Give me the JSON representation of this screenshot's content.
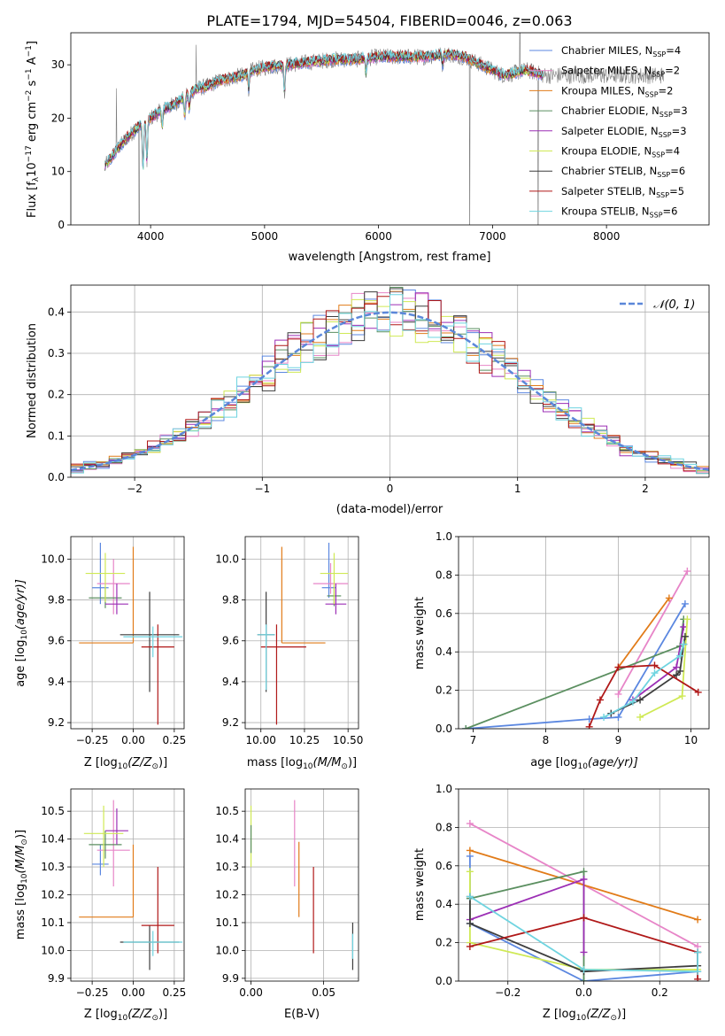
{
  "figure": {
    "title": "PLATE=1794, MJD=54504, FIBERID=0046, z=0.063"
  },
  "colors": {
    "chabrier_miles": "#5b87e0",
    "salpeter_miles": "#e785c8",
    "kroupa_miles": "#e17b18",
    "chabrier_elodie": "#5b8f60",
    "salpeter_elodie": "#9c2fb5",
    "kroupa_elodie": "#cfe955",
    "chabrier_stelib": "#3d3d3d",
    "salpeter_stelib": "#b01818",
    "kroupa_stelib": "#6fd4e0",
    "normal_curve": "#5b87d9",
    "observed_spectrum": "#7d7d7d"
  },
  "legend_spectrum": [
    {
      "label": "Chabrier MILES, N",
      "sub": "SSP",
      "tail": "=4",
      "color": "#5b87e0"
    },
    {
      "label": "Salpeter MILES, N",
      "sub": "SSP",
      "tail": "=2",
      "color": "#e785c8"
    },
    {
      "label": "Kroupa MILES, N",
      "sub": "SSP",
      "tail": "=2",
      "color": "#e17b18"
    },
    {
      "label": "Chabrier ELODIE, N",
      "sub": "SSP",
      "tail": "=3",
      "color": "#5b8f60"
    },
    {
      "label": "Salpeter ELODIE, N",
      "sub": "SSP",
      "tail": "=3",
      "color": "#9c2fb5"
    },
    {
      "label": "Kroupa ELODIE, N",
      "sub": "SSP",
      "tail": "=4",
      "color": "#cfe955"
    },
    {
      "label": "Chabrier STELIB, N",
      "sub": "SSP",
      "tail": "=6",
      "color": "#3d3d3d"
    },
    {
      "label": "Salpeter STELIB, N",
      "sub": "SSP",
      "tail": "=5",
      "color": "#b01818"
    },
    {
      "label": "Kroupa STELIB, N",
      "sub": "SSP",
      "tail": "=6",
      "color": "#6fd4e0"
    }
  ],
  "legend_hist": {
    "label": "𝒩(0, 1)"
  },
  "axes_text": {
    "spectrum_xlabel": "wavelength [Angstrom, rest frame]",
    "spectrum_ylabel": "Flux [f",
    "spectrum_ylabel_sub": "λ",
    "spectrum_ylabel_mid": "10",
    "spectrum_ylabel_sup1": "−17",
    "spectrum_ylabel_rest": " erg cm",
    "spectrum_ylabel_sup2": "−2",
    "spectrum_ylabel_rest2": " s",
    "spectrum_ylabel_sup3": "−1",
    "spectrum_ylabel_rest3": " A",
    "spectrum_ylabel_sup4": "−1",
    "spectrum_ylabel_end": "]",
    "hist_xlabel": "(data-model)/error",
    "hist_ylabel": "Normed distribution",
    "z_label": "Z [log",
    "z_sub": "10",
    "z_label_mid": "(Z/Z",
    "z_sun": "⊙",
    "z_end": ")]",
    "mass_label": "mass [log",
    "mass_mid": "(M/M",
    "age_label": "age  [log",
    "age_mid": "(age/yr)]",
    "massweight_label": "mass weight",
    "ebv_label": "E(B-V)"
  },
  "chart_data": [
    {
      "id": "spectrum",
      "type": "line",
      "title": "PLATE=1794, MJD=54504, FIBERID=0046, z=0.063",
      "xlabel": "wavelength [Angstrom, rest frame]",
      "ylabel": "Flux [fλ 10^-17 erg cm^-2 s^-1 A^-1]",
      "xlim": [
        3300,
        8900
      ],
      "ylim": [
        0,
        36
      ],
      "xticks": [
        4000,
        5000,
        6000,
        7000,
        8000
      ],
      "yticks": [
        0,
        10,
        20,
        30
      ],
      "grid": false,
      "legend_position": "top-right",
      "model_envelope": {
        "x": [
          3600,
          3700,
          3800,
          3900,
          4000,
          4100,
          4200,
          4300,
          4400,
          4500,
          4600,
          4700,
          4800,
          4900,
          5000,
          5200,
          5400,
          5600,
          5800,
          6000,
          6200,
          6400,
          6600,
          6750,
          6900,
          7100,
          7300,
          7450
        ],
        "y": [
          11,
          14,
          16.5,
          18.5,
          20,
          21.5,
          22.5,
          24,
          25.5,
          26,
          27,
          27.5,
          28,
          29,
          29.5,
          30,
          30.5,
          31,
          31,
          31.5,
          31.5,
          31.5,
          32,
          31.5,
          30,
          28,
          29,
          28
        ]
      },
      "series_names": [
        "Chabrier MILES, NSSP=4",
        "Salpeter MILES, NSSP=2",
        "Kroupa MILES, NSSP=2",
        "Chabrier ELODIE, NSSP=3",
        "Salpeter ELODIE, NSSP=3",
        "Kroupa ELODIE, NSSP=4",
        "Chabrier STELIB, NSSP=6",
        "Salpeter STELIB, NSSP=5",
        "Kroupa STELIB, NSSP=6"
      ]
    },
    {
      "id": "residual_hist",
      "type": "histogram",
      "xlabel": "(data-model)/error",
      "ylabel": "Normed distribution",
      "xlim": [
        -2.5,
        2.5
      ],
      "ylim": [
        0,
        0.465
      ],
      "xticks": [
        -2,
        -1,
        0,
        1,
        2
      ],
      "yticks": [
        0.0,
        0.1,
        0.2,
        0.3,
        0.4
      ],
      "grid": true,
      "legend_position": "top-right",
      "bin_width": 0.1,
      "bin_start": -2.5,
      "reference_curve": "normal(0,1) pdf"
    },
    {
      "id": "age_vs_Z",
      "type": "errorbar",
      "xlabel": "Z [log10(Z/Z⊙)]",
      "ylabel": "age [log10(age/yr)]",
      "xlim": [
        -0.38,
        0.31
      ],
      "ylim": [
        9.17,
        10.11
      ],
      "xticks": [
        -0.25,
        0.0,
        0.25
      ],
      "yticks": [
        9.2,
        9.4,
        9.6,
        9.8,
        10.0
      ],
      "grid": true,
      "points": [
        {
          "model": "Chabrier MILES",
          "x": -0.2,
          "y": 9.86,
          "xerr": [
            0.05,
            0.05
          ],
          "yerr": [
            0.08,
            0.22
          ]
        },
        {
          "model": "Salpeter MILES",
          "x": -0.12,
          "y": 9.88,
          "xerr": [
            0.1,
            0.1
          ],
          "yerr": [
            0.15,
            0.12
          ]
        },
        {
          "model": "Kroupa MILES",
          "x": 0.0,
          "y": 9.59,
          "xerr": [
            0.33,
            0.0
          ],
          "yerr": [
            0.0,
            0.47
          ]
        },
        {
          "model": "Chabrier ELODIE",
          "x": -0.17,
          "y": 9.81,
          "xerr": [
            0.1,
            0.1
          ],
          "yerr": [
            0.05,
            0.05
          ]
        },
        {
          "model": "Salpeter ELODIE",
          "x": -0.1,
          "y": 9.78,
          "xerr": [
            0.07,
            0.07
          ],
          "yerr": [
            0.05,
            0.1
          ]
        },
        {
          "model": "Kroupa ELODIE",
          "x": -0.17,
          "y": 9.93,
          "xerr": [
            0.12,
            0.12
          ],
          "yerr": [
            0.14,
            0.1
          ]
        },
        {
          "model": "Chabrier STELIB",
          "x": 0.1,
          "y": 9.63,
          "xerr": [
            0.18,
            0.18
          ],
          "yerr": [
            0.28,
            0.21
          ]
        },
        {
          "model": "Salpeter STELIB",
          "x": 0.15,
          "y": 9.57,
          "xerr": [
            0.1,
            0.1
          ],
          "yerr": [
            0.38,
            0.11
          ]
        },
        {
          "model": "Kroupa STELIB",
          "x": 0.12,
          "y": 9.62,
          "xerr": [
            0.18,
            0.18
          ],
          "yerr": [
            0.1,
            0.05
          ]
        }
      ]
    },
    {
      "id": "age_vs_mass",
      "type": "errorbar",
      "xlabel": "mass [log10(M/M⊙)]",
      "ylabel": "",
      "xlim": [
        9.91,
        10.56
      ],
      "ylim": [
        9.17,
        10.11
      ],
      "xticks": [
        10.0,
        10.25,
        10.5
      ],
      "yticks": [
        9.2,
        9.4,
        9.6,
        9.8,
        10.0
      ],
      "grid": true,
      "points": [
        {
          "model": "Chabrier MILES",
          "x": 10.39,
          "y": 9.86,
          "xerr": [
            0.04,
            0.04
          ],
          "yerr": [
            0.05,
            0.22
          ]
        },
        {
          "model": "Salpeter MILES",
          "x": 10.4,
          "y": 9.88,
          "xerr": [
            0.1,
            0.1
          ],
          "yerr": [
            0.05,
            0.1
          ]
        },
        {
          "model": "Kroupa MILES",
          "x": 10.12,
          "y": 9.59,
          "xerr": [
            0.0,
            0.25
          ],
          "yerr": [
            0.0,
            0.47
          ]
        },
        {
          "model": "Chabrier ELODIE",
          "x": 10.42,
          "y": 9.82,
          "xerr": [
            0.04,
            0.04
          ],
          "yerr": [
            0.05,
            0.05
          ]
        },
        {
          "model": "Salpeter ELODIE",
          "x": 10.43,
          "y": 9.78,
          "xerr": [
            0.06,
            0.06
          ],
          "yerr": [
            0.05,
            0.1
          ]
        },
        {
          "model": "Kroupa ELODIE",
          "x": 10.42,
          "y": 9.93,
          "xerr": [
            0.08,
            0.08
          ],
          "yerr": [
            0.15,
            0.1
          ]
        },
        {
          "model": "Chabrier STELIB",
          "x": 10.03,
          "y": 9.63,
          "xerr": [
            0.05,
            0.05
          ],
          "yerr": [
            0.28,
            0.21
          ]
        },
        {
          "model": "Salpeter STELIB",
          "x": 10.09,
          "y": 9.57,
          "xerr": [
            0.09,
            0.17
          ],
          "yerr": [
            0.38,
            0.11
          ]
        },
        {
          "model": "Kroupa STELIB",
          "x": 10.03,
          "y": 9.63,
          "xerr": [
            0.05,
            0.05
          ],
          "yerr": [
            0.27,
            0.05
          ]
        }
      ]
    },
    {
      "id": "massweight_vs_age",
      "type": "line",
      "xlabel": "age [log10(age/yr)]",
      "ylabel": "mass weight",
      "xlim": [
        6.8,
        10.25
      ],
      "ylim": [
        0,
        1
      ],
      "xticks": [
        7,
        8,
        9,
        10
      ],
      "yticks": [
        0.0,
        0.2,
        0.4,
        0.6,
        0.8,
        1.0
      ],
      "grid": true,
      "series": [
        {
          "model": "Chabrier MILES",
          "x": [
            6.9,
            8.6,
            9.0,
            9.92
          ],
          "y": [
            0.0,
            0.05,
            0.06,
            0.65
          ]
        },
        {
          "model": "Salpeter MILES",
          "x": [
            9.0,
            9.95
          ],
          "y": [
            0.18,
            0.82
          ]
        },
        {
          "model": "Kroupa MILES",
          "x": [
            9.0,
            9.7
          ],
          "y": [
            0.32,
            0.68
          ]
        },
        {
          "model": "Chabrier ELODIE",
          "x": [
            6.9,
            9.85,
            9.9
          ],
          "y": [
            0.0,
            0.43,
            0.57
          ]
        },
        {
          "model": "Salpeter ELODIE",
          "x": [
            9.2,
            9.8,
            9.9
          ],
          "y": [
            0.15,
            0.32,
            0.53
          ]
        },
        {
          "model": "Kroupa ELODIE",
          "x": [
            9.3,
            9.88,
            9.95
          ],
          "y": [
            0.06,
            0.17,
            0.57
          ]
        },
        {
          "model": "Chabrier STELIB",
          "x": [
            8.9,
            9.3,
            9.8,
            9.85,
            9.9,
            9.92
          ],
          "y": [
            0.08,
            0.15,
            0.28,
            0.3,
            0.44,
            0.48
          ]
        },
        {
          "model": "Salpeter STELIB",
          "x": [
            8.6,
            8.75,
            9.0,
            9.5,
            10.1
          ],
          "y": [
            0.01,
            0.15,
            0.32,
            0.33,
            0.19
          ]
        },
        {
          "model": "Kroupa STELIB",
          "x": [
            8.8,
            9.2,
            9.5,
            9.85,
            9.9
          ],
          "y": [
            0.06,
            0.14,
            0.29,
            0.38,
            0.44
          ]
        }
      ]
    },
    {
      "id": "mass_vs_Z",
      "type": "errorbar",
      "xlabel": "Z [log10(Z/Z⊙)]",
      "ylabel": "mass [log10(M/M⊙)]",
      "xlim": [
        -0.38,
        0.31
      ],
      "ylim": [
        9.89,
        10.58
      ],
      "xticks": [
        -0.25,
        0.0,
        0.25
      ],
      "yticks": [
        9.9,
        10.0,
        10.1,
        10.2,
        10.3,
        10.4,
        10.5
      ],
      "grid": true,
      "points": [
        {
          "model": "Chabrier MILES",
          "x": -0.2,
          "y": 10.31,
          "xerr": [
            0.05,
            0.05
          ],
          "yerr": [
            0.04,
            0.07
          ]
        },
        {
          "model": "Salpeter MILES",
          "x": -0.12,
          "y": 10.36,
          "xerr": [
            0.1,
            0.1
          ],
          "yerr": [
            0.13,
            0.18
          ]
        },
        {
          "model": "Kroupa MILES",
          "x": 0.0,
          "y": 10.12,
          "xerr": [
            0.33,
            0.0
          ],
          "yerr": [
            0.0,
            0.26
          ]
        },
        {
          "model": "Chabrier ELODIE",
          "x": -0.17,
          "y": 10.38,
          "xerr": [
            0.1,
            0.1
          ],
          "yerr": [
            0.05,
            0.05
          ]
        },
        {
          "model": "Salpeter ELODIE",
          "x": -0.1,
          "y": 10.43,
          "xerr": [
            0.07,
            0.07
          ],
          "yerr": [
            0.05,
            0.08
          ]
        },
        {
          "model": "Kroupa ELODIE",
          "x": -0.18,
          "y": 10.42,
          "xerr": [
            0.12,
            0.12
          ],
          "yerr": [
            0.12,
            0.1
          ]
        },
        {
          "model": "Chabrier STELIB",
          "x": 0.1,
          "y": 10.03,
          "xerr": [
            0.18,
            0.18
          ],
          "yerr": [
            0.1,
            0.06
          ]
        },
        {
          "model": "Salpeter STELIB",
          "x": 0.15,
          "y": 10.09,
          "xerr": [
            0.1,
            0.1
          ],
          "yerr": [
            0.1,
            0.21
          ]
        },
        {
          "model": "Kroupa STELIB",
          "x": 0.12,
          "y": 10.03,
          "xerr": [
            0.18,
            0.18
          ],
          "yerr": [
            0.05,
            0.04
          ]
        }
      ]
    },
    {
      "id": "mass_vs_ebv",
      "type": "errorbar",
      "xlabel": "E(B-V)",
      "ylabel": "",
      "xlim": [
        -0.004,
        0.074
      ],
      "ylim": [
        9.89,
        10.58
      ],
      "xticks": [
        0.0,
        0.05
      ],
      "yticks": [
        9.9,
        10.0,
        10.1,
        10.2,
        10.3,
        10.4,
        10.5
      ],
      "grid": true,
      "points": [
        {
          "model": "Kroupa ELODIE",
          "x": 0.0,
          "y": 10.42,
          "yerr": [
            0.12,
            0.1
          ]
        },
        {
          "model": "Chabrier ELODIE",
          "x": 0.0,
          "y": 10.4,
          "yerr": [
            0.05,
            0.05
          ]
        },
        {
          "model": "Salpeter MILES",
          "x": 0.03,
          "y": 10.36,
          "yerr": [
            0.13,
            0.18
          ]
        },
        {
          "model": "Kroupa MILES",
          "x": 0.033,
          "y": 10.12,
          "yerr": [
            0.0,
            0.27
          ]
        },
        {
          "model": "Salpeter STELIB",
          "x": 0.043,
          "y": 10.09,
          "yerr": [
            0.1,
            0.21
          ]
        },
        {
          "model": "Chabrier STELIB",
          "x": 0.07,
          "y": 10.03,
          "yerr": [
            0.1,
            0.07
          ]
        },
        {
          "model": "Kroupa STELIB",
          "x": 0.07,
          "y": 10.02,
          "yerr": [
            0.05,
            0.04
          ]
        }
      ]
    },
    {
      "id": "massweight_vs_Z",
      "type": "line",
      "xlabel": "Z [log10(Z/Z⊙)]",
      "ylabel": "mass weight",
      "xlim": [
        -0.33,
        0.33
      ],
      "ylim": [
        0,
        1
      ],
      "xticks": [
        -0.2,
        0.0,
        0.2
      ],
      "yticks": [
        0.0,
        0.2,
        0.4,
        0.6,
        0.8,
        1.0
      ],
      "grid": true,
      "series": [
        {
          "model": "Chabrier MILES",
          "x": [
            -0.3,
            -0.3,
            0.0,
            0.3
          ],
          "y": [
            0.65,
            0.3,
            0.0,
            0.05
          ]
        },
        {
          "model": "Salpeter MILES",
          "x": [
            -0.3,
            0.3
          ],
          "y": [
            0.82,
            0.18
          ]
        },
        {
          "model": "Kroupa MILES",
          "x": [
            -0.3,
            0.3
          ],
          "y": [
            0.68,
            0.32
          ]
        },
        {
          "model": "Chabrier ELODIE",
          "x": [
            -0.3,
            0.0,
            0.0
          ],
          "y": [
            0.43,
            0.57,
            0.0
          ]
        },
        {
          "model": "Salpeter ELODIE",
          "x": [
            -0.3,
            0.0,
            0.0
          ],
          "y": [
            0.32,
            0.53,
            0.15
          ]
        },
        {
          "model": "Kroupa ELODIE",
          "x": [
            -0.3,
            -0.3,
            0.0,
            0.3
          ],
          "y": [
            0.57,
            0.2,
            0.06,
            0.06
          ]
        },
        {
          "model": "Chabrier STELIB",
          "x": [
            -0.3,
            -0.3,
            0.0,
            0.3,
            0.3
          ],
          "y": [
            0.44,
            0.3,
            0.05,
            0.08,
            0.15
          ]
        },
        {
          "model": "Salpeter STELIB",
          "x": [
            -0.3,
            0.0,
            0.3,
            0.3
          ],
          "y": [
            0.18,
            0.33,
            0.15,
            0.01
          ]
        },
        {
          "model": "Kroupa STELIB",
          "x": [
            -0.3,
            0.0,
            0.3,
            0.3
          ],
          "y": [
            0.44,
            0.06,
            0.05,
            0.15
          ]
        }
      ]
    }
  ]
}
